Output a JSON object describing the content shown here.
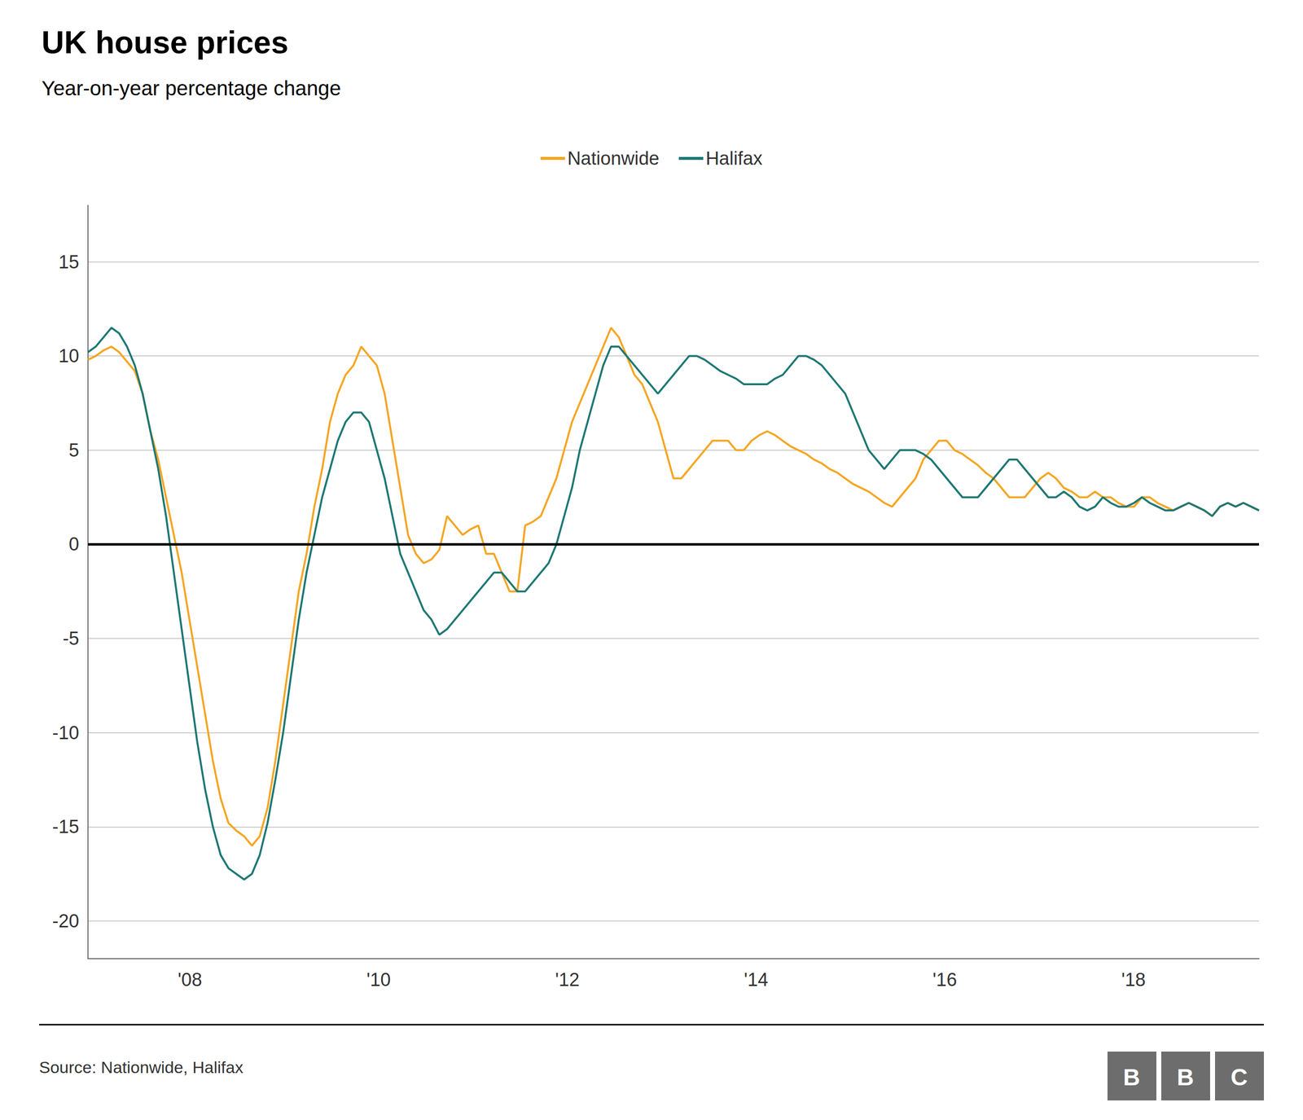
{
  "chart_data": {
    "type": "line",
    "title": "UK house prices",
    "subtitle": "Year-on-year percentage change",
    "source": "Source: Nationwide, Halifax",
    "logo": "BBC",
    "grid": true,
    "legend": "top",
    "xlim": [
      2006.92,
      2019.33
    ],
    "xticks": [
      {
        "value": 2008,
        "label": "'08"
      },
      {
        "value": 2010,
        "label": "'10"
      },
      {
        "value": 2012,
        "label": "'12"
      },
      {
        "value": 2014,
        "label": "'14"
      },
      {
        "value": 2016,
        "label": "'16"
      },
      {
        "value": 2018,
        "label": "'18"
      }
    ],
    "ylim": [
      -22,
      18
    ],
    "yticks": [
      -20,
      -15,
      -10,
      -5,
      0,
      5,
      10,
      15
    ],
    "x": [
      2006.92,
      2007.0027,
      2007.0855,
      2007.1682,
      2007.2509,
      2007.3337,
      2007.4164,
      2007.4991,
      2007.5819,
      2007.6646,
      2007.7473,
      2007.8301,
      2007.9128,
      2007.9955,
      2008.0783,
      2008.161,
      2008.2437,
      2008.3265,
      2008.4092,
      2008.4919,
      2008.5747,
      2008.6574,
      2008.7401,
      2008.8229,
      2008.9056,
      2008.9883,
      2009.0711,
      2009.1538,
      2009.2365,
      2009.3193,
      2009.402,
      2009.4847,
      2009.5675,
      2009.6502,
      2009.7329,
      2009.8157,
      2009.8984,
      2009.9811,
      2010.0639,
      2010.1466,
      2010.2293,
      2010.3121,
      2010.3948,
      2010.4775,
      2010.5603,
      2010.643,
      2010.7257,
      2010.8085,
      2010.8912,
      2010.9739,
      2011.0567,
      2011.1394,
      2011.2221,
      2011.3049,
      2011.3876,
      2011.4703,
      2011.5531,
      2011.6358,
      2011.7185,
      2011.8013,
      2011.884,
      2011.9667,
      2012.0495,
      2012.1322,
      2012.2149,
      2012.2977,
      2012.3804,
      2012.4631,
      2012.5459,
      2012.6286,
      2012.7113,
      2012.7941,
      2012.8768,
      2012.9595,
      2013.0423,
      2013.125,
      2013.2077,
      2013.2905,
      2013.3732,
      2013.4559,
      2013.5387,
      2013.6214,
      2013.7041,
      2013.7869,
      2013.8696,
      2013.9523,
      2014.0351,
      2014.1178,
      2014.2005,
      2014.2833,
      2014.366,
      2014.4487,
      2014.5315,
      2014.6142,
      2014.6969,
      2014.7797,
      2014.8624,
      2014.9451,
      2015.0279,
      2015.1106,
      2015.1933,
      2015.2761,
      2015.3588,
      2015.4415,
      2015.5243,
      2015.607,
      2015.6897,
      2015.7725,
      2015.8552,
      2015.9379,
      2016.0207,
      2016.1034,
      2016.1861,
      2016.2689,
      2016.3516,
      2016.4343,
      2016.5171,
      2016.5998,
      2016.6825,
      2016.7653,
      2016.848,
      2016.9307,
      2017.0135,
      2017.0962,
      2017.1789,
      2017.2617,
      2017.3444,
      2017.4271,
      2017.5099,
      2017.5926,
      2017.6753,
      2017.7581,
      2017.8408,
      2017.9235,
      2018.0063,
      2018.089,
      2018.1717,
      2018.2545,
      2018.3372,
      2018.4199,
      2018.5027,
      2018.5854,
      2018.6681,
      2018.7509,
      2018.8336,
      2018.9163,
      2018.9991,
      2019.0818,
      2019.1645,
      2019.2473,
      2019.33
    ],
    "series": [
      {
        "name": "Nationwide",
        "color": "#F5A623",
        "values": [
          9.8,
          10.0,
          10.3,
          10.5,
          10.2,
          9.7,
          9.2,
          8.0,
          6.0,
          4.5,
          2.5,
          0.5,
          -1.5,
          -4.0,
          -6.5,
          -9.0,
          -11.5,
          -13.5,
          -14.8,
          -15.2,
          -15.5,
          -16.0,
          -15.5,
          -14.0,
          -11.5,
          -8.5,
          -5.5,
          -2.5,
          -0.5,
          2.0,
          4.0,
          6.5,
          8.0,
          9.0,
          9.5,
          10.5,
          10.0,
          9.5,
          8.0,
          5.5,
          3.0,
          0.5,
          -0.5,
          -1.0,
          -0.8,
          -0.3,
          1.5,
          1.0,
          0.5,
          0.8,
          1.0,
          -0.5,
          -0.5,
          -1.5,
          -2.5,
          -2.5,
          1.0,
          1.2,
          1.5,
          2.5,
          3.5,
          5.0,
          6.5,
          7.5,
          8.5,
          9.5,
          10.5,
          11.5,
          11.0,
          10.0,
          9.0,
          8.5,
          7.5,
          6.5,
          5.0,
          3.5,
          3.5,
          4.0,
          4.5,
          5.0,
          5.5,
          5.5,
          5.5,
          5.0,
          5.0,
          5.5,
          5.8,
          6.0,
          5.8,
          5.5,
          5.2,
          5.0,
          4.8,
          4.5,
          4.3,
          4.0,
          3.8,
          3.5,
          3.2,
          3.0,
          2.8,
          2.5,
          2.2,
          2.0,
          2.5,
          3.0,
          3.5,
          4.5,
          5.0,
          5.5,
          5.5,
          5.0,
          4.8,
          4.5,
          4.2,
          3.8,
          3.5,
          3.0,
          2.5,
          2.5,
          2.5,
          3.0,
          3.5,
          3.8,
          3.5,
          3.0,
          2.8,
          2.5,
          2.5,
          2.8,
          2.5,
          2.5,
          2.2,
          2.0,
          2.0,
          2.5,
          2.5,
          2.2,
          2.0,
          1.8,
          2.0,
          2.2,
          2.0,
          1.8,
          1.5,
          2.0,
          2.2,
          2.0,
          2.2,
          2.0,
          1.8
        ]
      },
      {
        "name": "Halifax",
        "color": "#1D7874",
        "values": [
          10.2,
          10.5,
          11.0,
          11.5,
          11.2,
          10.5,
          9.5,
          8.0,
          6.0,
          4.0,
          1.5,
          -1.5,
          -4.5,
          -7.5,
          -10.5,
          -13.0,
          -15.0,
          -16.5,
          -17.2,
          -17.5,
          -17.8,
          -17.5,
          -16.5,
          -14.8,
          -12.5,
          -10.0,
          -7.0,
          -4.0,
          -1.5,
          0.5,
          2.5,
          4.0,
          5.5,
          6.5,
          7.0,
          7.0,
          6.5,
          5.0,
          3.5,
          1.5,
          -0.5,
          -1.5,
          -2.5,
          -3.5,
          -4.0,
          -4.8,
          -4.5,
          -4.0,
          -3.5,
          -3.0,
          -2.5,
          -2.0,
          -1.5,
          -1.5,
          -2.0,
          -2.5,
          -2.5,
          -2.0,
          -1.5,
          -1.0,
          0.0,
          1.5,
          3.0,
          5.0,
          6.5,
          8.0,
          9.5,
          10.5,
          10.5,
          10.0,
          9.5,
          9.0,
          8.5,
          8.0,
          8.5,
          9.0,
          9.5,
          10.0,
          10.0,
          9.8,
          9.5,
          9.2,
          9.0,
          8.8,
          8.5,
          8.5,
          8.5,
          8.5,
          8.8,
          9.0,
          9.5,
          10.0,
          10.0,
          9.8,
          9.5,
          9.0,
          8.5,
          8.0,
          7.0,
          6.0,
          5.0,
          4.5,
          4.0,
          4.5,
          5.0,
          5.0,
          5.0,
          4.8,
          4.5,
          4.0,
          3.5,
          3.0,
          2.5,
          2.5,
          2.5,
          3.0,
          3.5,
          4.0,
          4.5,
          4.5,
          4.0,
          3.5,
          3.0,
          2.5,
          2.5,
          2.8,
          2.5,
          2.0,
          1.8,
          2.0,
          2.5,
          2.2,
          2.0,
          2.0,
          2.2,
          2.5,
          2.2,
          2.0,
          1.8,
          1.8,
          2.0,
          2.2,
          2.0,
          1.8,
          1.5,
          2.0,
          2.2,
          2.0,
          2.2,
          2.0,
          1.8
        ]
      }
    ]
  }
}
